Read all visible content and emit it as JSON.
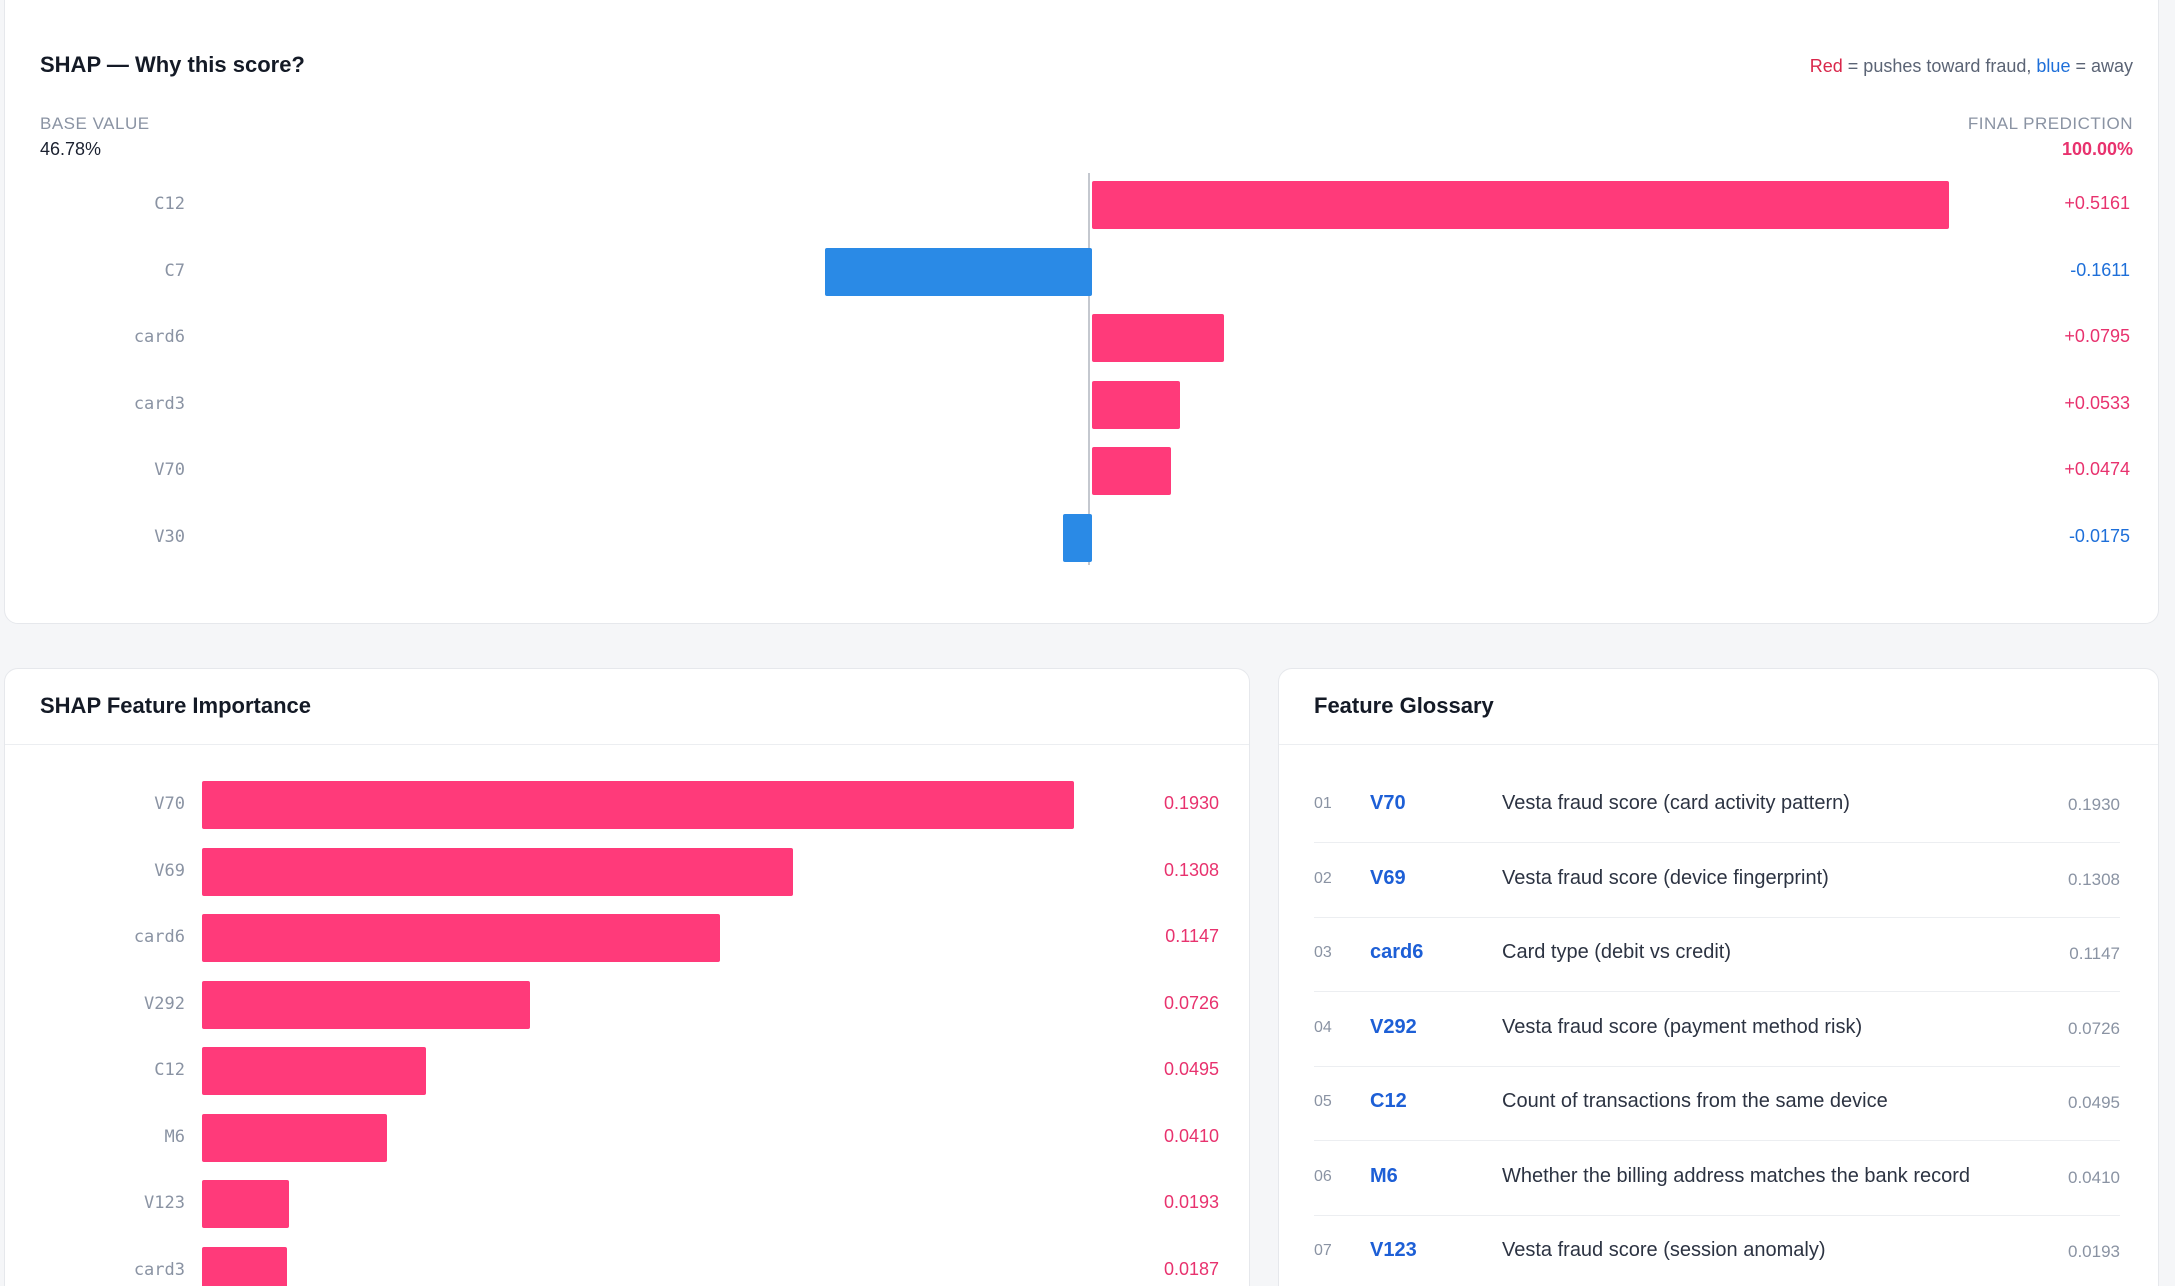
{
  "shap_why": {
    "title": "SHAP — Why this score?",
    "legend": {
      "red": "Red",
      "mid": " = pushes toward fraud, ",
      "blue": "blue",
      "end": " = away"
    },
    "base_label": "BASE VALUE",
    "base_value": "46.78%",
    "final_label": "FINAL PREDICTION",
    "final_value": "100.00%",
    "features": [
      {
        "name": "C12",
        "value": 0.5161,
        "display": "+0.5161"
      },
      {
        "name": "C7",
        "value": -0.1611,
        "display": "-0.1611"
      },
      {
        "name": "card6",
        "value": 0.0795,
        "display": "+0.0795"
      },
      {
        "name": "card3",
        "value": 0.0533,
        "display": "+0.0533"
      },
      {
        "name": "V70",
        "value": 0.0474,
        "display": "+0.0474"
      },
      {
        "name": "V30",
        "value": -0.0175,
        "display": "-0.0175"
      }
    ]
  },
  "importance": {
    "title": "SHAP Feature Importance",
    "features": [
      {
        "name": "V70",
        "value": 0.193,
        "display": "0.1930"
      },
      {
        "name": "V69",
        "value": 0.1308,
        "display": "0.1308"
      },
      {
        "name": "card6",
        "value": 0.1147,
        "display": "0.1147"
      },
      {
        "name": "V292",
        "value": 0.0726,
        "display": "0.0726"
      },
      {
        "name": "C12",
        "value": 0.0495,
        "display": "0.0495"
      },
      {
        "name": "M6",
        "value": 0.041,
        "display": "0.0410"
      },
      {
        "name": "V123",
        "value": 0.0193,
        "display": "0.0193"
      },
      {
        "name": "card3",
        "value": 0.0187,
        "display": "0.0187"
      }
    ]
  },
  "glossary": {
    "title": "Feature Glossary",
    "rows": [
      {
        "num": "01",
        "code": "V70",
        "desc": "Vesta fraud score (card activity pattern)",
        "value": "0.1930"
      },
      {
        "num": "02",
        "code": "V69",
        "desc": "Vesta fraud score (device fingerprint)",
        "value": "0.1308"
      },
      {
        "num": "03",
        "code": "card6",
        "desc": "Card type (debit vs credit)",
        "value": "0.1147"
      },
      {
        "num": "04",
        "code": "V292",
        "desc": "Vesta fraud score (payment method risk)",
        "value": "0.0726"
      },
      {
        "num": "05",
        "code": "C12",
        "desc": "Count of transactions from the same device",
        "value": "0.0495"
      },
      {
        "num": "06",
        "code": "M6",
        "desc": "Whether the billing address matches the bank record",
        "value": "0.0410"
      },
      {
        "num": "07",
        "code": "V123",
        "desc": "Vesta fraud score (session anomaly)",
        "value": "0.0193"
      }
    ]
  },
  "colors": {
    "positive": "#ff3a7a",
    "negative": "#2a8ae6",
    "code": "#1d5fd6"
  }
}
